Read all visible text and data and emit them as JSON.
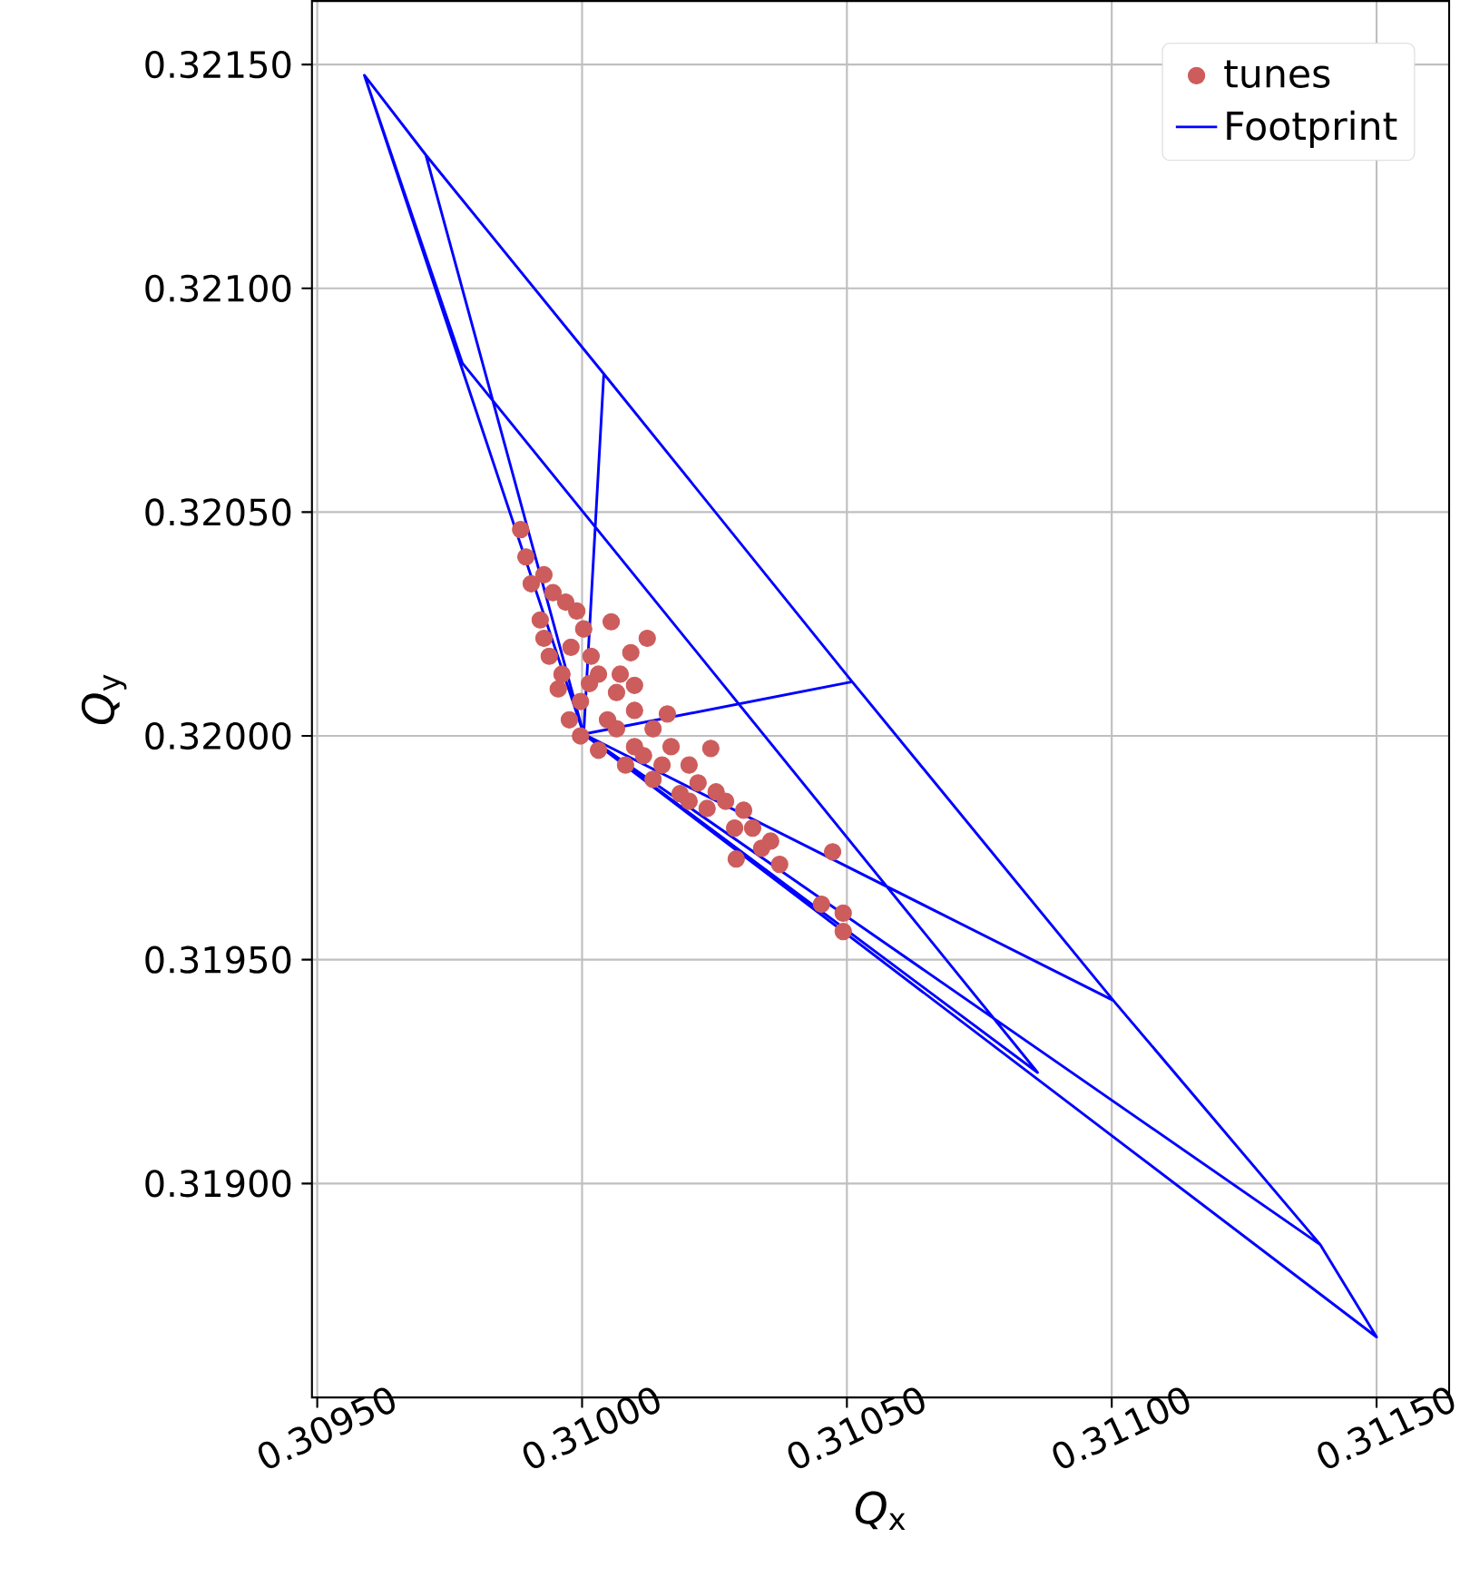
{
  "chart_data": {
    "type": "scatter",
    "xlabel": "*Q*$_{x}$",
    "ylabel": "*Q*$_{y}$",
    "xlim": [
      0.30949,
      0.311637
    ],
    "ylim": [
      0.318522,
      0.321642
    ],
    "xticks": [
      {
        "value": 0.3095,
        "label": "0.30950"
      },
      {
        "value": 0.31,
        "label": "0.31000"
      },
      {
        "value": 0.3105,
        "label": "0.31050"
      },
      {
        "value": 0.311,
        "label": "0.31100"
      },
      {
        "value": 0.3115,
        "label": "0.31150"
      }
    ],
    "yticks": [
      {
        "value": 0.319,
        "label": "0.31900"
      },
      {
        "value": 0.3195,
        "label": "0.31950"
      },
      {
        "value": 0.32,
        "label": "0.32000"
      },
      {
        "value": 0.3205,
        "label": "0.32050"
      },
      {
        "value": 0.321,
        "label": "0.32100"
      },
      {
        "value": 0.3215,
        "label": "0.32150"
      }
    ],
    "grid": true,
    "legend": "top right",
    "series": [
      {
        "name": "tunes",
        "type": "scatter",
        "marker": "circle",
        "color": "#cd5c5c",
        "x": [
          0.309884,
          0.309894,
          0.309904,
          0.309921,
          0.309938,
          0.309955,
          0.309976,
          0.309997,
          0.310031,
          0.310082,
          0.310134,
          0.310185,
          0.310236,
          0.310288,
          0.310339,
          0.310373,
          0.309928,
          0.309945,
          0.309969,
          0.30999,
          0.310003,
          0.310017,
          0.310031,
          0.310065,
          0.310099,
          0.310134,
          0.310168,
          0.310202,
          0.310253,
          0.310305,
          0.309928,
          0.309962,
          0.309997,
          0.310048,
          0.310099,
          0.310151,
          0.310219,
          0.310271,
          0.310322,
          0.310356,
          0.309979,
          0.310014,
          0.310065,
          0.310116,
          0.310055,
          0.310092,
          0.310123,
          0.310072,
          0.310099,
          0.310161,
          0.310243,
          0.310473,
          0.310452,
          0.310493,
          0.310493,
          0.310291,
          0.310202
        ],
        "values": [
          0.320461,
          0.3204,
          0.32034,
          0.320259,
          0.320178,
          0.320105,
          0.320036,
          0.32,
          0.319968,
          0.319935,
          0.319903,
          0.319871,
          0.319838,
          0.319794,
          0.319749,
          0.319713,
          0.32036,
          0.32032,
          0.320299,
          0.320279,
          0.320239,
          0.320178,
          0.320138,
          0.320097,
          0.320057,
          0.320016,
          0.319976,
          0.319935,
          0.319875,
          0.319834,
          0.320218,
          0.320138,
          0.320077,
          0.320036,
          0.319976,
          0.319935,
          0.319895,
          0.319854,
          0.319794,
          0.319765,
          0.320198,
          0.320117,
          0.320016,
          0.319956,
          0.320255,
          0.320186,
          0.320218,
          0.320138,
          0.320113,
          0.320049,
          0.319972,
          0.319741,
          0.319624,
          0.319604,
          0.319563,
          0.319725,
          0.319854
        ]
      },
      {
        "name": "Footprint",
        "type": "line",
        "marker": "none",
        "color": "#0000ff",
        "x": [
          0.309774,
          0.309589,
          0.309705,
          0.310041,
          0.31051,
          0.311003,
          0.311394,
          0.3115,
          0.310003,
          0.31086,
          0.309774,
          0.309589,
          0.310003,
          0.309705,
          0.310041,
          0.310003,
          0.31051,
          0.311003,
          0.310003,
          0.311394
        ],
        "values": [
          0.320833,
          0.321476,
          0.321298,
          0.320809,
          0.320121,
          0.319409,
          0.318863,
          0.318657,
          0.320004,
          0.319248,
          0.320833,
          0.321476,
          0.320004,
          0.321298,
          0.320809,
          0.320004,
          0.320121,
          0.319409,
          0.320004,
          0.318863
        ]
      }
    ]
  }
}
